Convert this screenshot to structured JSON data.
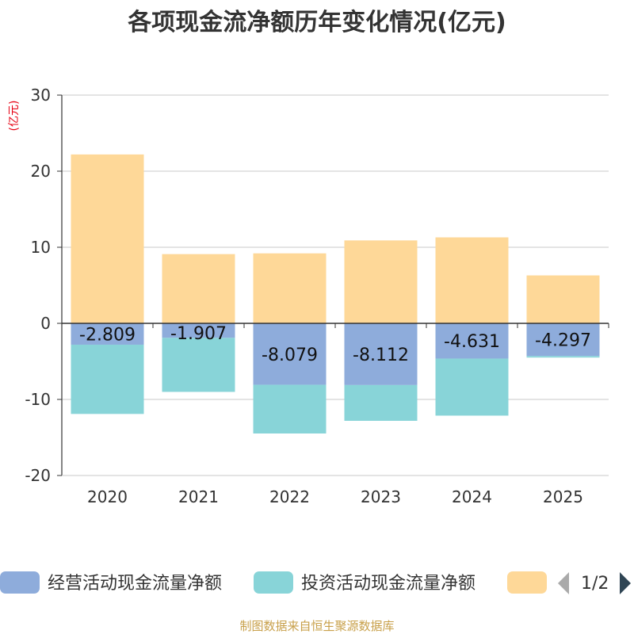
{
  "chart_data": {
    "type": "bar",
    "stacked": true,
    "title": "各项现金流净额历年变化情况(亿元)",
    "ylabel": "(亿元)",
    "ylim": [
      -20,
      30
    ],
    "yticks": [
      30,
      20,
      10,
      0,
      -10,
      -20
    ],
    "grid": true,
    "categories": [
      "2020",
      "2021",
      "2022",
      "2023",
      "2024",
      "2025"
    ],
    "series": [
      {
        "name": "经营活动现金流量净额",
        "color": "#8eacdb",
        "values": [
          -2.809,
          -1.907,
          -8.079,
          -8.112,
          -4.631,
          -4.297
        ],
        "labels": [
          "-2.809",
          "-1.907",
          "-8.079",
          "-8.112",
          "-4.631",
          "-4.297"
        ]
      },
      {
        "name": "投资活动现金流量净额",
        "color": "#88d4d8",
        "values": [
          -9.1,
          -7.1,
          -6.4,
          -4.7,
          -7.5,
          -0.2
        ]
      },
      {
        "name": "",
        "color": "#fed898",
        "values": [
          22.2,
          9.1,
          9.2,
          10.9,
          11.3,
          6.3
        ]
      }
    ],
    "legend": {
      "placement": "bottom",
      "page": "1/2"
    },
    "source": "制图数据来自恒生聚源数据库"
  }
}
